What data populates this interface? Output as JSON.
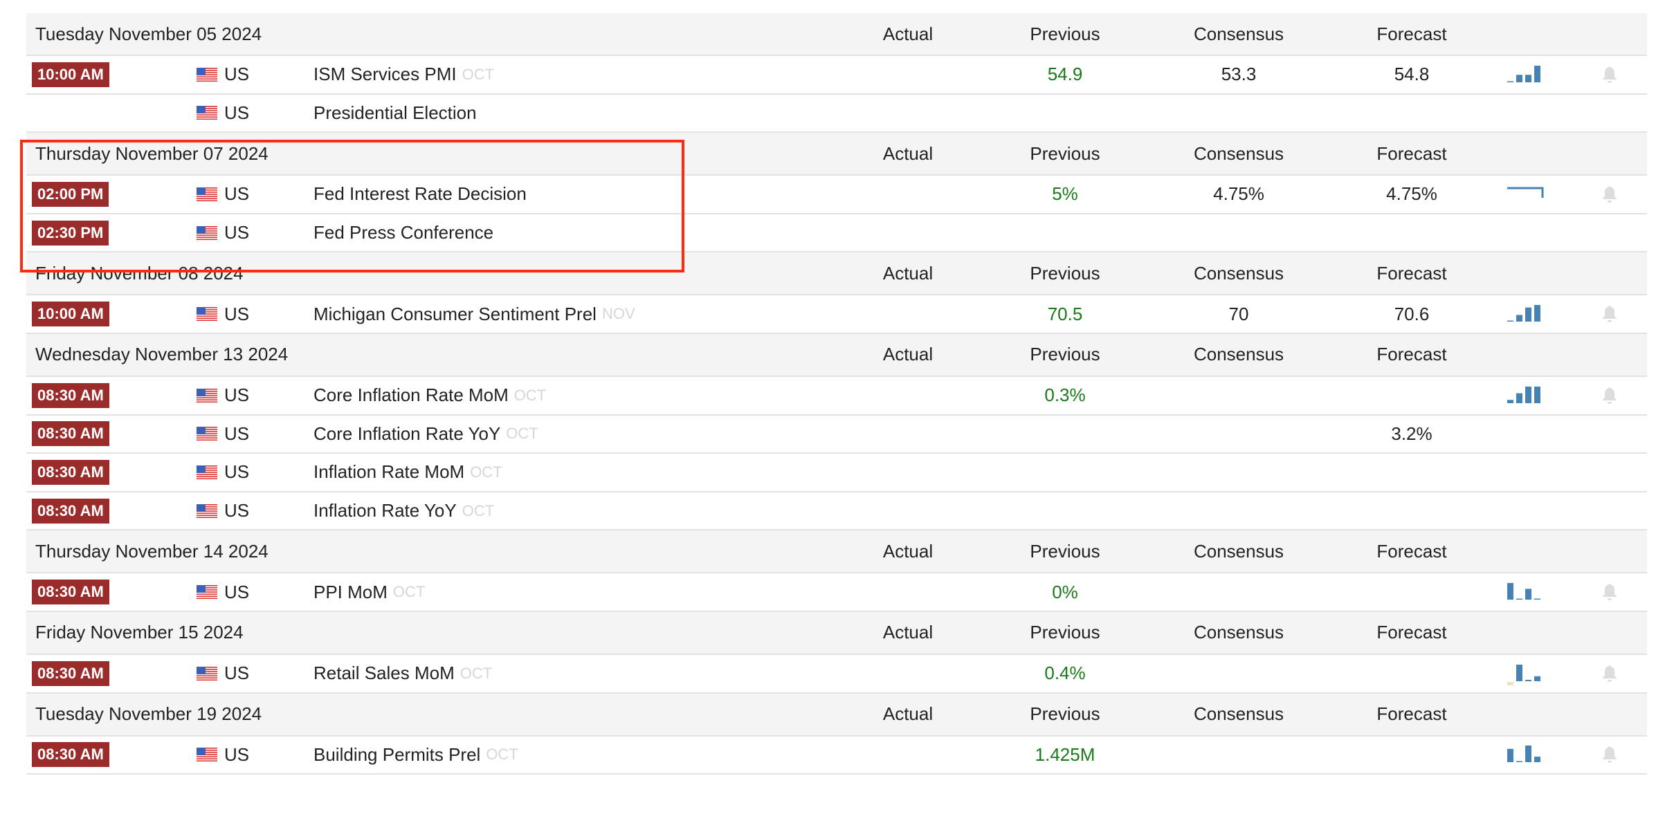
{
  "columns": {
    "actual": "Actual",
    "previous": "Previous",
    "consensus": "Consensus",
    "forecast": "Forecast"
  },
  "colors": {
    "time_badge": "#9b2c2c",
    "previous_value": "#1a7a1a",
    "sparkline": "#4682b4",
    "sparkline_negative": "#f5deb3",
    "bell": "#dddddd",
    "highlight_box": "#ff2a12"
  },
  "groups": [
    {
      "date": "Tuesday November 05 2024",
      "events": [
        {
          "time": "10:00 AM",
          "country": "US",
          "event": "ISM Services PMI",
          "reference": "OCT",
          "actual": "",
          "previous": "54.9",
          "consensus": "53.3",
          "forecast": "54.8",
          "sparkline": {
            "type": "bar",
            "values": [
              0.05,
              0.45,
              0.45,
              1
            ]
          },
          "alert": true
        },
        {
          "time": "",
          "country": "US",
          "event": "Presidential Election",
          "reference": "",
          "actual": "",
          "previous": "",
          "consensus": "",
          "forecast": "",
          "sparkline": null,
          "alert": false
        }
      ]
    },
    {
      "date": "Thursday November 07 2024",
      "highlighted": true,
      "events": [
        {
          "time": "02:00 PM",
          "country": "US",
          "event": "Fed Interest Rate Decision",
          "reference": "",
          "actual": "",
          "previous": "5%",
          "consensus": "4.75%",
          "forecast": "4.75%",
          "sparkline": {
            "type": "line",
            "values": [
              5.5,
              5.5,
              5.5,
              4.75
            ]
          },
          "alert": true
        },
        {
          "time": "02:30 PM",
          "country": "US",
          "event": "Fed Press Conference",
          "reference": "",
          "actual": "",
          "previous": "",
          "consensus": "",
          "forecast": "",
          "sparkline": null,
          "alert": false
        }
      ]
    },
    {
      "date": "Friday November 08 2024",
      "events": [
        {
          "time": "10:00 AM",
          "country": "US",
          "event": "Michigan Consumer Sentiment Prel",
          "reference": "NOV",
          "actual": "",
          "previous": "70.5",
          "consensus": "70",
          "forecast": "70.6",
          "sparkline": {
            "type": "bar",
            "values": [
              0.05,
              0.4,
              0.85,
              1
            ]
          },
          "alert": true
        }
      ]
    },
    {
      "date": "Wednesday November 13 2024",
      "events": [
        {
          "time": "08:30 AM",
          "country": "US",
          "event": "Core Inflation Rate MoM",
          "reference": "OCT",
          "actual": "",
          "previous": "0.3%",
          "consensus": "",
          "forecast": "",
          "sparkline": {
            "type": "bar",
            "values": [
              0.2,
              0.6,
              1,
              1
            ]
          },
          "alert": true
        },
        {
          "time": "08:30 AM",
          "country": "US",
          "event": "Core Inflation Rate YoY",
          "reference": "OCT",
          "actual": "",
          "previous": "",
          "consensus": "",
          "forecast": "3.2%",
          "sparkline": null,
          "alert": false
        },
        {
          "time": "08:30 AM",
          "country": "US",
          "event": "Inflation Rate MoM",
          "reference": "OCT",
          "actual": "",
          "previous": "",
          "consensus": "",
          "forecast": "",
          "sparkline": null,
          "alert": false
        },
        {
          "time": "08:30 AM",
          "country": "US",
          "event": "Inflation Rate YoY",
          "reference": "OCT",
          "actual": "",
          "previous": "",
          "consensus": "",
          "forecast": "",
          "sparkline": null,
          "alert": false
        }
      ]
    },
    {
      "date": "Thursday November 14 2024",
      "events": [
        {
          "time": "08:30 AM",
          "country": "US",
          "event": "PPI MoM",
          "reference": "OCT",
          "actual": "",
          "previous": "0%",
          "consensus": "",
          "forecast": "",
          "sparkline": {
            "type": "bar",
            "values": [
              1,
              0,
              0.65,
              0
            ]
          },
          "alert": true
        }
      ]
    },
    {
      "date": "Friday November 15 2024",
      "events": [
        {
          "time": "08:30 AM",
          "country": "US",
          "event": "Retail Sales MoM",
          "reference": "OCT",
          "actual": "",
          "previous": "0.4%",
          "consensus": "",
          "forecast": "",
          "sparkline": {
            "type": "bar",
            "values": [
              -0.2,
              1,
              0.08,
              0.3
            ]
          },
          "alert": true
        }
      ]
    },
    {
      "date": "Tuesday November 19 2024",
      "events": [
        {
          "time": "08:30 AM",
          "country": "US",
          "event": "Building Permits Prel",
          "reference": "OCT",
          "actual": "",
          "previous": "1.425M",
          "consensus": "",
          "forecast": "",
          "sparkline": {
            "type": "bar",
            "values": [
              0.8,
              0.06,
              1,
              0.33
            ]
          },
          "alert": true
        }
      ]
    }
  ]
}
